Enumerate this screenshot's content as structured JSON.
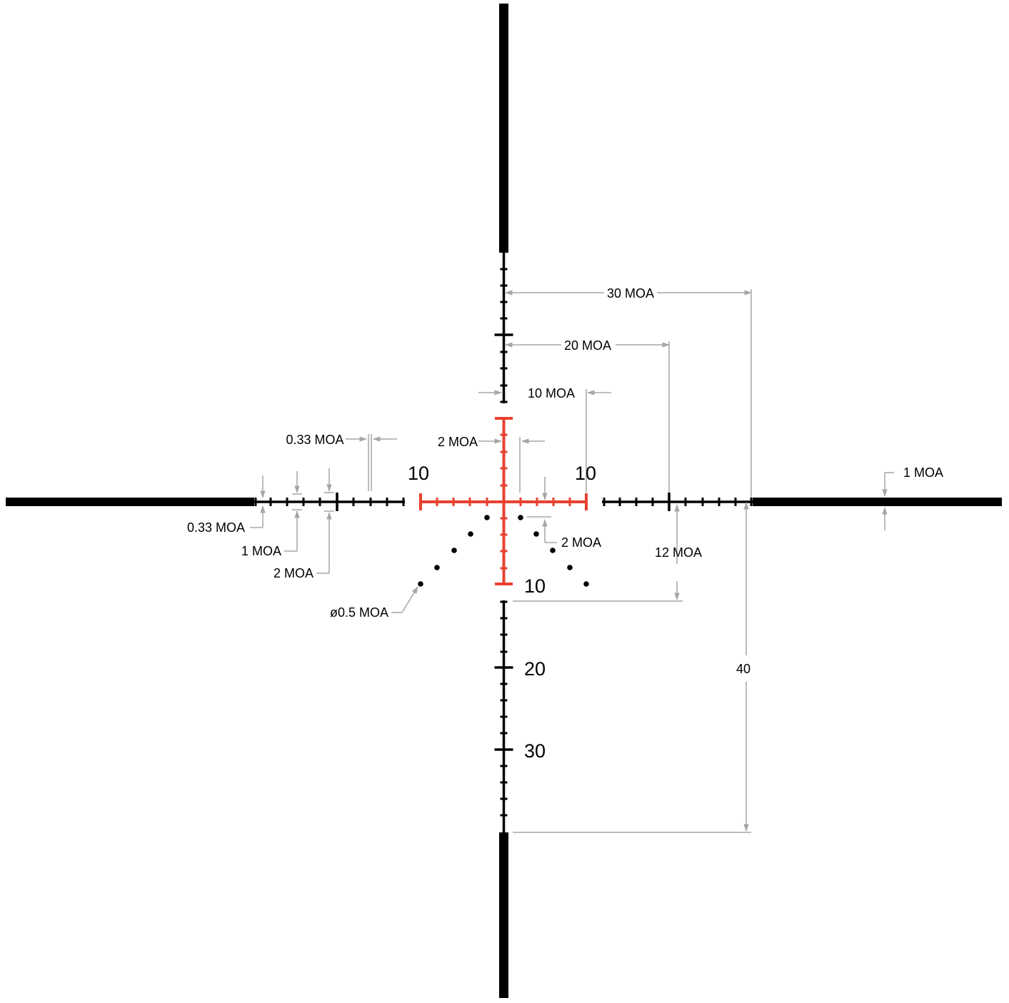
{
  "colors": {
    "reticle": "#000000",
    "center": "#e8412f",
    "dimension": "#a6a6a6",
    "background": "#ffffff"
  },
  "subtension_numbers": {
    "left_10": "10",
    "right_10": "10",
    "bottom_10": "10",
    "bottom_20": "20",
    "bottom_30": "30"
  },
  "dimension_labels": {
    "moa_30": "30 MOA",
    "moa_20": "20 MOA",
    "moa_10": "10 MOA",
    "moa_2_top": "2 MOA",
    "moa_033_top": "0.33 MOA",
    "moa_1_right": "1 MOA",
    "moa_033_left": "0.33 MOA",
    "moa_1_left": "1 MOA",
    "moa_2_left": "2 MOA",
    "moa_2_dots": "2 MOA",
    "moa_12": "12 MOA",
    "dot_diameter": "ø0.5 MOA",
    "post_40": "40"
  }
}
